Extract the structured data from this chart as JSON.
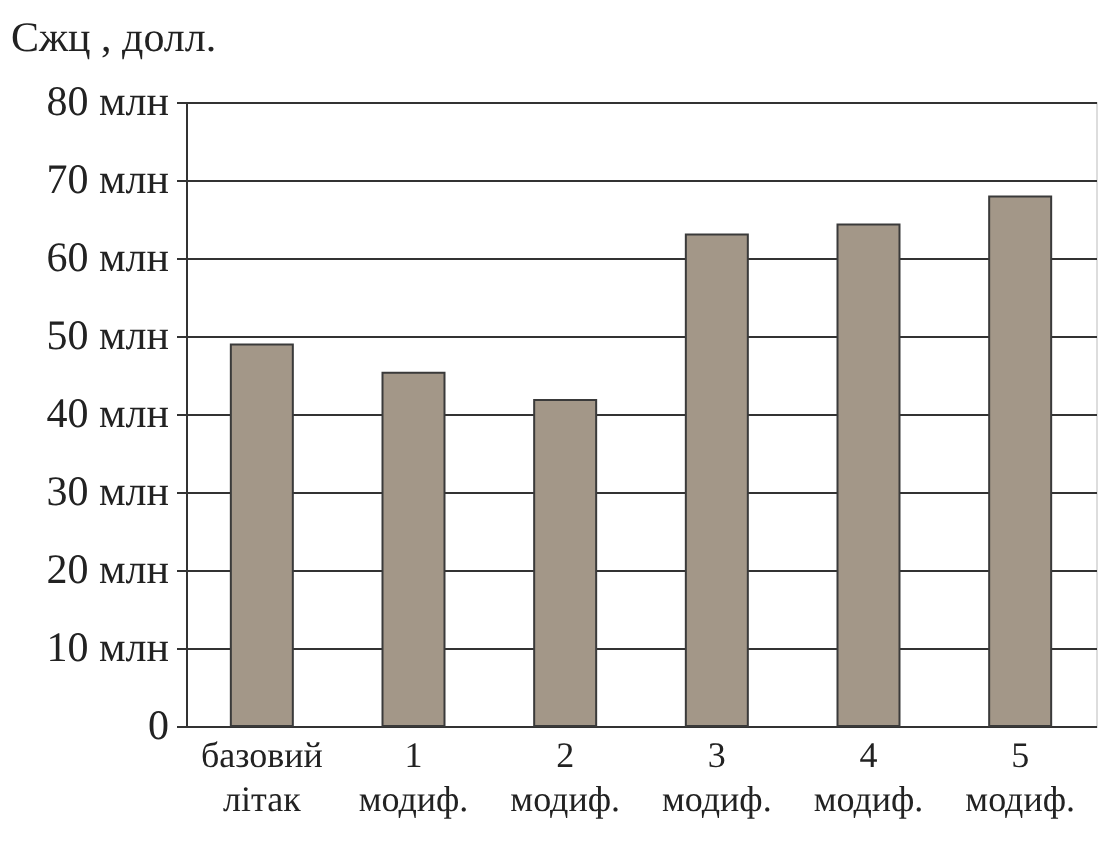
{
  "chart_data": {
    "type": "bar",
    "ylabel": "Cжц , долл.",
    "categories": [
      "базовий літак",
      "1 модиф.",
      "2 модиф.",
      "3 модиф.",
      "4 модиф.",
      "5 модиф."
    ],
    "values": [
      48.9,
      45.3,
      41.8,
      63.0,
      64.3,
      67.9
    ],
    "color": "#a39788",
    "ylim": [
      0,
      80
    ],
    "yticks": [
      0,
      {
        "value": 10,
        "label": "10 млн"
      },
      {
        "value": 20,
        "label": "20 млн"
      },
      {
        "value": 30,
        "label": "30 млн"
      },
      {
        "value": 40,
        "label": "40 млн"
      },
      {
        "value": 50,
        "label": "50 млн"
      },
      {
        "value": 60,
        "label": "60 млн"
      },
      {
        "value": 70,
        "label": "70 млн"
      },
      {
        "value": 80,
        "label": "80 млн"
      }
    ],
    "grid": "y"
  }
}
